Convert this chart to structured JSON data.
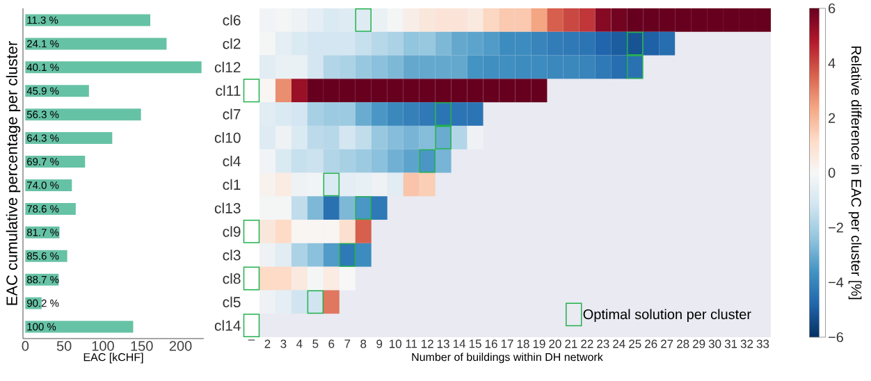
{
  "chart_data": [
    {
      "type": "bar",
      "orientation": "horizontal",
      "categories": [
        "11.3 %",
        "24.1 %",
        "40.1 %",
        "45.9 %",
        "56.3 %",
        "64.3 %",
        "69.7 %",
        "74.0 %",
        "78.6 %",
        "81.7 %",
        "85.6 %",
        "88.7 %",
        "90.2 %",
        "100 %"
      ],
      "values": [
        161,
        182,
        227,
        82,
        149,
        112,
        77,
        60,
        65,
        44,
        54,
        43,
        21,
        139
      ],
      "color": "#66c2a5",
      "xlabel": "EAC [kCHF]",
      "ylabel": "EAC cumulative percentage per cluster",
      "xlim": [
        -3,
        230
      ],
      "xticks": [
        0,
        50,
        100,
        150,
        200
      ]
    },
    {
      "type": "heatmap",
      "categories": [
        "–",
        "2",
        "3",
        "4",
        "5",
        "6",
        "7",
        "8",
        "9",
        "10",
        "11",
        "12",
        "13",
        "14",
        "15",
        "16",
        "17",
        "18",
        "19",
        "20",
        "21",
        "22",
        "23",
        "24",
        "25",
        "26",
        "27",
        "28",
        "29",
        "30",
        "31",
        "32",
        "33"
      ],
      "y_categories": [
        "cl6",
        "cl2",
        "cl12",
        "cl11",
        "cl7",
        "cl10",
        "cl4",
        "cl1",
        "cl13",
        "cl9",
        "cl3",
        "cl8",
        "cl5",
        "cl14"
      ],
      "cells": [
        [
          null,
          -0.2,
          -0.1,
          -0.3,
          -0.6,
          -0.9,
          -0.8,
          -0.8,
          -0.4,
          -0.1,
          0.4,
          0.7,
          0.8,
          0.8,
          0.6,
          1.3,
          1.6,
          1.6,
          2.4,
          3.6,
          4.0,
          4.3,
          5.5,
          5.8,
          6,
          6,
          6,
          6,
          6,
          6,
          6,
          6,
          6
        ],
        [
          null,
          -0.1,
          -0.6,
          -0.9,
          -1.1,
          -1.1,
          -1.1,
          -1.4,
          -1.7,
          -1.9,
          -2.4,
          -2.3,
          -2.7,
          -3.1,
          -3.2,
          -3.4,
          -3.8,
          -3.8,
          -4.0,
          -4.2,
          -4.3,
          -4.4,
          -4.8,
          -5.0,
          -5.2,
          -4.9,
          -4.6,
          null,
          null,
          null,
          null,
          null,
          null
        ],
        [
          null,
          -0.7,
          -0.4,
          -0.4,
          -1.1,
          -1.8,
          -1.9,
          -2.3,
          -2.5,
          -2.7,
          -3.1,
          -3.1,
          -3.1,
          -3.1,
          -3.6,
          -3.7,
          -3.7,
          -3.8,
          -3.8,
          -3.9,
          -3.9,
          -4.0,
          -4.3,
          -4.6,
          -4.5,
          null,
          null,
          null,
          null,
          null,
          null,
          null,
          null
        ],
        [
          null,
          0.1,
          2.8,
          5.2,
          6,
          6,
          6,
          6,
          6,
          6,
          6,
          6,
          6,
          6,
          6,
          6,
          6,
          6,
          6,
          null,
          null,
          null,
          null,
          null,
          null,
          null,
          null,
          null,
          null,
          null,
          null,
          null,
          null
        ],
        [
          null,
          -0.7,
          -0.9,
          -1.1,
          -2.0,
          -2.2,
          -2.2,
          -3.0,
          -3.5,
          -3.9,
          -4.1,
          -4.3,
          -4.4,
          -4.4,
          -4.4,
          null,
          null,
          null,
          null,
          null,
          null,
          null,
          null,
          null,
          null,
          null,
          null,
          null,
          null,
          null,
          null,
          null,
          null
        ],
        [
          null,
          -0.8,
          -0.3,
          -0.9,
          -1.6,
          -1.7,
          -1.1,
          -1.5,
          -2.3,
          -2.6,
          -2.8,
          -2.6,
          -3.0,
          -1.8,
          -0.3,
          null,
          null,
          null,
          null,
          null,
          null,
          null,
          null,
          null,
          null,
          null,
          null,
          null,
          null,
          null,
          null,
          null,
          null
        ],
        [
          null,
          -0.2,
          -0.9,
          -1.4,
          -1.3,
          -1.8,
          -2.0,
          -2.2,
          -2.5,
          -2.9,
          -3.2,
          -3.5,
          -2.8,
          null,
          null,
          null,
          null,
          null,
          null,
          null,
          null,
          null,
          null,
          null,
          null,
          null,
          null,
          null,
          null,
          null,
          null,
          null,
          null
        ],
        [
          null,
          0.2,
          0.5,
          -0.3,
          -0.2,
          -0.9,
          -0.6,
          -0.5,
          -0.3,
          -0.7,
          1.7,
          1.5,
          null,
          null,
          null,
          null,
          null,
          null,
          null,
          null,
          null,
          null,
          null,
          null,
          null,
          null,
          null,
          null,
          null,
          null,
          null,
          null,
          null
        ],
        [
          null,
          -0.1,
          -0.1,
          -1.5,
          -2.7,
          -4.5,
          -2.7,
          -3.5,
          -4.3,
          null,
          null,
          null,
          null,
          null,
          null,
          null,
          null,
          null,
          null,
          null,
          null,
          null,
          null,
          null,
          null,
          null,
          null,
          null,
          null,
          null,
          null,
          null,
          null
        ],
        [
          null,
          0.7,
          1.2,
          0.1,
          0.1,
          0.1,
          1.0,
          3.6,
          null,
          null,
          null,
          null,
          null,
          null,
          null,
          null,
          null,
          null,
          null,
          null,
          null,
          null,
          null,
          null,
          null,
          null,
          null,
          null,
          null,
          null,
          null,
          null,
          null
        ],
        [
          null,
          -0.3,
          -0.7,
          -1.9,
          -2.5,
          -3.4,
          -4.3,
          -3.8,
          null,
          null,
          null,
          null,
          null,
          null,
          null,
          null,
          null,
          null,
          null,
          null,
          null,
          null,
          null,
          null,
          null,
          null,
          null,
          null,
          null,
          null,
          null,
          null,
          null
        ],
        [
          null,
          1.2,
          1.2,
          0.6,
          -0.1,
          0.5,
          0.0,
          null,
          null,
          null,
          null,
          null,
          null,
          null,
          null,
          null,
          null,
          null,
          null,
          null,
          null,
          null,
          null,
          null,
          null,
          null,
          null,
          null,
          null,
          null,
          null,
          null,
          null
        ],
        [
          null,
          -0.3,
          -0.6,
          -1.2,
          -1.2,
          3.2,
          null,
          null,
          null,
          null,
          null,
          null,
          null,
          null,
          null,
          null,
          null,
          null,
          null,
          null,
          null,
          null,
          null,
          null,
          null,
          null,
          null,
          null,
          null,
          null,
          null,
          null,
          null
        ],
        [
          null,
          null,
          null,
          null,
          null,
          null,
          null,
          null,
          null,
          null,
          null,
          null,
          null,
          null,
          null,
          null,
          null,
          null,
          null,
          null,
          null,
          null,
          null,
          null,
          null,
          null,
          null,
          null,
          null,
          null,
          null,
          null,
          null
        ]
      ],
      "clim": [
        -6,
        6
      ],
      "cticks": [
        {
          "value": -6,
          "label": "−6"
        },
        {
          "value": -4,
          "label": "−4"
        },
        {
          "value": -2,
          "label": "−2"
        },
        0,
        2,
        4,
        6
      ],
      "clabel": "Relative difference in EAC per cluster [%]",
      "xlabel": "Number of buildings within DH network",
      "legend": "bottom right",
      "series": [
        {
          "type": "scatter",
          "name": "Optimal solution per cluster",
          "color": "#22b14c",
          "marker": "square",
          "x": [
            "8",
            "25",
            "25",
            "–",
            "13",
            "13",
            "12",
            "6",
            "8",
            "–",
            "7",
            "–",
            "5",
            "–"
          ],
          "values": [
            0,
            1,
            2,
            3,
            4,
            5,
            6,
            7,
            8,
            9,
            10,
            11,
            12,
            13
          ]
        }
      ]
    }
  ]
}
